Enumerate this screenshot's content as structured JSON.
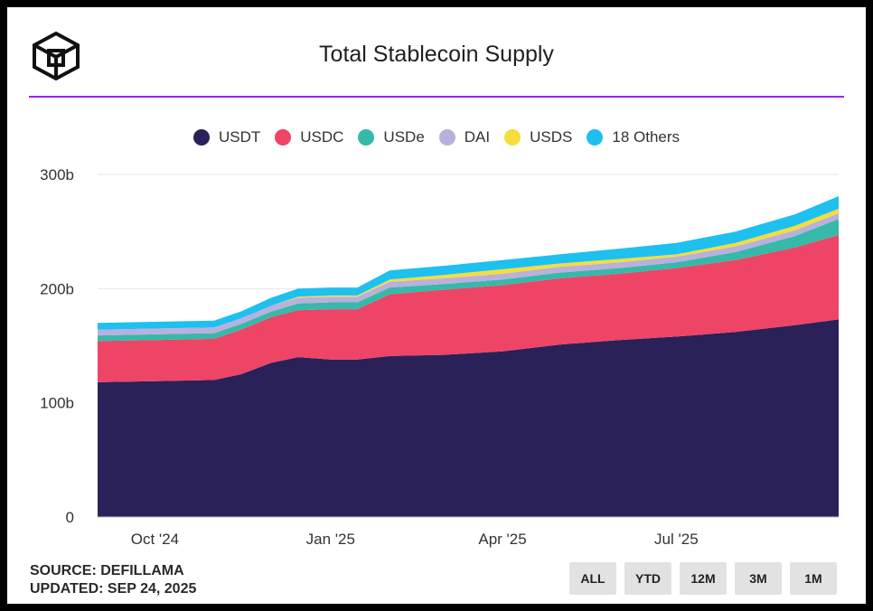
{
  "header": {
    "title": "Total Stablecoin Supply",
    "logo_icon": "cube-logo-icon",
    "rule_color": "#a020f0"
  },
  "footer": {
    "source": "SOURCE: DEFILLAMA",
    "updated": "UPDATED: SEP 24, 2025"
  },
  "range_buttons": [
    "ALL",
    "YTD",
    "12M",
    "3M",
    "1M"
  ],
  "chart_data": {
    "type": "area",
    "stacked": true,
    "title": "Total Stablecoin Supply",
    "y_unit": "b",
    "ylim": [
      0,
      300
    ],
    "yticks": [
      {
        "value": 0,
        "label": "0"
      },
      {
        "value": 100,
        "label": "100b"
      },
      {
        "value": 200,
        "label": "200b"
      },
      {
        "value": 300,
        "label": "300b"
      }
    ],
    "xlim": [
      "2024-09-01",
      "2025-09-24"
    ],
    "xticks": [
      {
        "date": "2024-10-01",
        "label": "Oct '24"
      },
      {
        "date": "2025-01-01",
        "label": "Jan '25"
      },
      {
        "date": "2025-04-01",
        "label": "Apr '25"
      },
      {
        "date": "2025-07-01",
        "label": "Jul '25"
      }
    ],
    "grid": "horizontal",
    "legend_position": "top",
    "x": [
      "2024-09-01",
      "2024-10-01",
      "2024-11-01",
      "2024-11-15",
      "2024-12-01",
      "2024-12-15",
      "2025-01-01",
      "2025-01-15",
      "2025-02-01",
      "2025-03-01",
      "2025-04-01",
      "2025-05-01",
      "2025-06-01",
      "2025-07-01",
      "2025-08-01",
      "2025-09-01",
      "2025-09-24"
    ],
    "series": [
      {
        "name": "USDT",
        "color": "#2a2158",
        "values": [
          118,
          119,
          120,
          125,
          135,
          140,
          138,
          138,
          141,
          142,
          145,
          151,
          155,
          158,
          162,
          168,
          173
        ]
      },
      {
        "name": "USDC",
        "color": "#ee4466",
        "values": [
          36,
          36,
          36,
          39,
          40,
          41,
          44,
          44,
          54,
          57,
          58,
          58,
          58,
          60,
          63,
          68,
          74
        ]
      },
      {
        "name": "USDe",
        "color": "#36b9a8",
        "values": [
          5,
          5,
          5,
          5,
          5,
          6,
          6,
          6,
          6,
          5,
          5,
          5,
          5,
          5,
          7,
          10,
          14
        ]
      },
      {
        "name": "DAI",
        "color": "#b9b0dd",
        "values": [
          5,
          5,
          5,
          5,
          5,
          5,
          5,
          5,
          5,
          5,
          5,
          5,
          5,
          5,
          5,
          5,
          5
        ]
      },
      {
        "name": "USDS",
        "color": "#f5dd3b",
        "values": [
          0,
          0,
          0,
          0,
          0,
          1,
          1,
          1,
          2,
          3,
          4,
          3,
          3,
          2,
          3,
          4,
          4
        ]
      },
      {
        "name": "18 Others",
        "color": "#1ec0f0",
        "values": [
          6,
          6,
          6,
          6,
          7,
          7,
          7,
          7,
          8,
          8,
          8,
          8,
          9,
          10,
          10,
          10,
          11
        ]
      }
    ]
  }
}
